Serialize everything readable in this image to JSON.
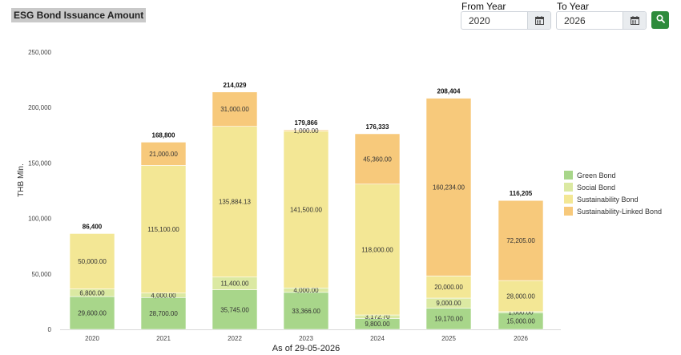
{
  "header": {
    "title": "ESG Bond Issuance Amount"
  },
  "filters": {
    "from_label": "From Year",
    "from_value": "2020",
    "to_label": "To Year",
    "to_value": "2026"
  },
  "icons": {
    "calendar": "calendar-icon",
    "search": "search-icon"
  },
  "colors": {
    "Green Bond": "#a8d68a",
    "Social Bond": "#dbe9a2",
    "Sustainability Bond": "#f3e795",
    "Sustainability-Linked Bond": "#f7c97b",
    "search_button": "#2e8b3c"
  },
  "chart_data": {
    "type": "bar",
    "stacked": true,
    "categories": [
      "2020",
      "2021",
      "2022",
      "2023",
      "2024",
      "2025",
      "2026"
    ],
    "series": [
      {
        "name": "Green Bond",
        "values": [
          29600,
          28700,
          35745,
          33366,
          9800,
          19170,
          15000
        ],
        "labels": [
          "29,600.00",
          "28,700.00",
          "35,745.00",
          "33,366.00",
          "9,800.00",
          "19,170.00",
          "15,000.00"
        ]
      },
      {
        "name": "Social Bond",
        "values": [
          6800,
          4000,
          11400,
          4000,
          3172.7,
          9000,
          1000
        ],
        "labels": [
          "6,800.00",
          "4,000.00",
          "11,400.00",
          "4,000.00",
          "3,172.70",
          "9,000.00",
          "1,000.00"
        ]
      },
      {
        "name": "Sustainability Bond",
        "values": [
          50000,
          115100,
          135884.13,
          141500,
          118000,
          20000,
          28000
        ],
        "labels": [
          "50,000.00",
          "115,100.00",
          "135,884.13",
          "141,500.00",
          "118,000.00",
          "20,000.00",
          "28,000.00"
        ]
      },
      {
        "name": "Sustainability-Linked Bond",
        "values": [
          0,
          21000,
          31000,
          1000,
          45360,
          160234,
          72205
        ],
        "labels": [
          "",
          "21,000.00",
          "31,000.00",
          "1,000.00",
          "45,360.00",
          "160,234.00",
          "72,205.00"
        ]
      }
    ],
    "totals": [
      "86,400",
      "168,800",
      "214,029",
      "179,866",
      "176,333",
      "208,404",
      "116,205"
    ],
    "ylabel": "THB Mln.",
    "xlabel": "As of 29-05-2026",
    "ylim": [
      0,
      250000
    ],
    "yticks": [
      "0",
      "50,000",
      "100,000",
      "150,000",
      "200,000",
      "250,000"
    ],
    "ytick_values": [
      0,
      50000,
      100000,
      150000,
      200000,
      250000
    ],
    "grid": false,
    "legend_position": "right"
  }
}
